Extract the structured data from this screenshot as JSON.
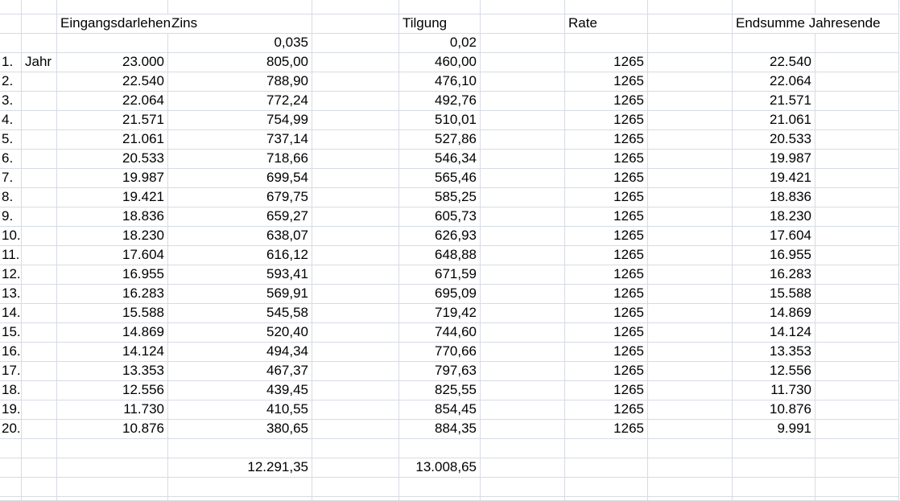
{
  "sheet": {
    "background": "#ffffff",
    "gridline_color": "#d6dbe4",
    "text_color": "#000000"
  },
  "headers": {
    "eingangsdarlehen": "Eingangsdarlehen",
    "zins": "Zins",
    "tilgung": "Tilgung",
    "rate": "Rate",
    "endsumme_jahresende": "Endsumme Jahresende"
  },
  "rates": {
    "zins": "0,035",
    "tilgung": "0,02"
  },
  "first_row_unit": "Jahr",
  "schedule": [
    {
      "nr": "1.",
      "eingangsdarlehen": "23.000",
      "zins": "805,00",
      "tilgung": "460,00",
      "rate": "1265",
      "endsumme": "22.540"
    },
    {
      "nr": "2.",
      "eingangsdarlehen": "22.540",
      "zins": "788,90",
      "tilgung": "476,10",
      "rate": "1265",
      "endsumme": "22.064"
    },
    {
      "nr": "3.",
      "eingangsdarlehen": "22.064",
      "zins": "772,24",
      "tilgung": "492,76",
      "rate": "1265",
      "endsumme": "21.571"
    },
    {
      "nr": "4.",
      "eingangsdarlehen": "21.571",
      "zins": "754,99",
      "tilgung": "510,01",
      "rate": "1265",
      "endsumme": "21.061"
    },
    {
      "nr": "5.",
      "eingangsdarlehen": "21.061",
      "zins": "737,14",
      "tilgung": "527,86",
      "rate": "1265",
      "endsumme": "20.533"
    },
    {
      "nr": "6.",
      "eingangsdarlehen": "20.533",
      "zins": "718,66",
      "tilgung": "546,34",
      "rate": "1265",
      "endsumme": "19.987"
    },
    {
      "nr": "7.",
      "eingangsdarlehen": "19.987",
      "zins": "699,54",
      "tilgung": "565,46",
      "rate": "1265",
      "endsumme": "19.421"
    },
    {
      "nr": "8.",
      "eingangsdarlehen": "19.421",
      "zins": "679,75",
      "tilgung": "585,25",
      "rate": "1265",
      "endsumme": "18.836"
    },
    {
      "nr": "9.",
      "eingangsdarlehen": "18.836",
      "zins": "659,27",
      "tilgung": "605,73",
      "rate": "1265",
      "endsumme": "18.230"
    },
    {
      "nr": "10.",
      "eingangsdarlehen": "18.230",
      "zins": "638,07",
      "tilgung": "626,93",
      "rate": "1265",
      "endsumme": "17.604"
    },
    {
      "nr": "11.",
      "eingangsdarlehen": "17.604",
      "zins": "616,12",
      "tilgung": "648,88",
      "rate": "1265",
      "endsumme": "16.955"
    },
    {
      "nr": "12.",
      "eingangsdarlehen": "16.955",
      "zins": "593,41",
      "tilgung": "671,59",
      "rate": "1265",
      "endsumme": "16.283"
    },
    {
      "nr": "13.",
      "eingangsdarlehen": "16.283",
      "zins": "569,91",
      "tilgung": "695,09",
      "rate": "1265",
      "endsumme": "15.588"
    },
    {
      "nr": "14.",
      "eingangsdarlehen": "15.588",
      "zins": "545,58",
      "tilgung": "719,42",
      "rate": "1265",
      "endsumme": "14.869"
    },
    {
      "nr": "15.",
      "eingangsdarlehen": "14.869",
      "zins": "520,40",
      "tilgung": "744,60",
      "rate": "1265",
      "endsumme": "14.124"
    },
    {
      "nr": "16.",
      "eingangsdarlehen": "14.124",
      "zins": "494,34",
      "tilgung": "770,66",
      "rate": "1265",
      "endsumme": "13.353"
    },
    {
      "nr": "17.",
      "eingangsdarlehen": "13.353",
      "zins": "467,37",
      "tilgung": "797,63",
      "rate": "1265",
      "endsumme": "12.556"
    },
    {
      "nr": "18.",
      "eingangsdarlehen": "12.556",
      "zins": "439,45",
      "tilgung": "825,55",
      "rate": "1265",
      "endsumme": "11.730"
    },
    {
      "nr": "19.",
      "eingangsdarlehen": "11.730",
      "zins": "410,55",
      "tilgung": "854,45",
      "rate": "1265",
      "endsumme": "10.876"
    },
    {
      "nr": "20.",
      "eingangsdarlehen": "10.876",
      "zins": "380,65",
      "tilgung": "884,35",
      "rate": "1265",
      "endsumme": "9.991"
    }
  ],
  "totals": {
    "zins": "12.291,35",
    "tilgung": "13.008,65"
  }
}
